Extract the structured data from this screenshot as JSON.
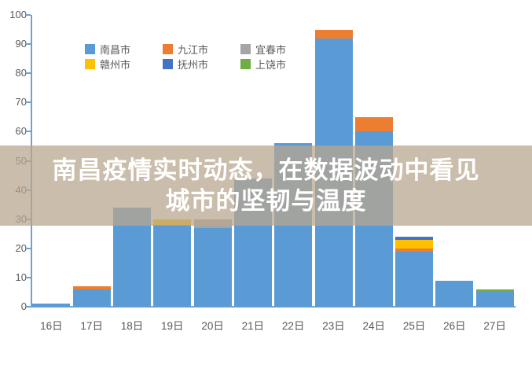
{
  "banner": {
    "line1": "南昌疫情实时动态，在数据波动中看见",
    "line2": "城市的坚韧与温度"
  },
  "colors": {
    "background": "#ffffff",
    "axis": "#6ea3cf",
    "tick_label": "#595959",
    "legend_label": "#595959",
    "banner_background": "#b9a68e",
    "banner_text": "#ffffff"
  },
  "chart_data": {
    "type": "bar",
    "stacked": true,
    "grid": false,
    "legend_position": "top-center-two-rows",
    "categories": [
      "16日",
      "17日",
      "18日",
      "19日",
      "20日",
      "21日",
      "22日",
      "23日",
      "24日",
      "25日",
      "26日",
      "27日"
    ],
    "series": [
      {
        "name": "南昌市",
        "color": "#5B9BD5",
        "values": [
          1,
          6,
          34,
          28,
          27,
          44,
          56,
          92,
          60,
          19,
          9,
          5
        ]
      },
      {
        "name": "九江市",
        "color": "#ED7D31",
        "values": [
          0,
          1,
          0,
          0,
          0,
          0,
          0,
          3,
          5,
          1,
          0,
          0
        ]
      },
      {
        "name": "宜春市",
        "color": "#A5A5A5",
        "values": [
          0,
          0,
          0,
          0,
          3,
          0,
          0,
          0,
          0,
          0,
          0,
          0
        ]
      },
      {
        "name": "赣州市",
        "color": "#FFC000",
        "values": [
          0,
          0,
          0,
          2,
          0,
          0,
          0,
          0,
          0,
          3,
          0,
          0
        ]
      },
      {
        "name": "抚州市",
        "color": "#4472C4",
        "values": [
          0,
          0,
          0,
          0,
          0,
          0,
          0,
          0,
          0,
          1,
          0,
          0
        ]
      },
      {
        "name": "上饶市",
        "color": "#70AD47",
        "values": [
          0,
          0,
          0,
          0,
          0,
          0,
          0,
          0,
          0,
          0,
          0,
          1
        ]
      }
    ],
    "totals": [
      1,
      7,
      34,
      30,
      30,
      44,
      56,
      95,
      65,
      24,
      9,
      6
    ],
    "xlabel": "",
    "ylabel": "",
    "ylim": [
      0,
      100
    ],
    "y_axis": {
      "min": 0,
      "max": 100,
      "step": 10,
      "ticks": [
        0,
        10,
        20,
        30,
        40,
        50,
        60,
        70,
        80,
        90,
        100
      ]
    }
  }
}
